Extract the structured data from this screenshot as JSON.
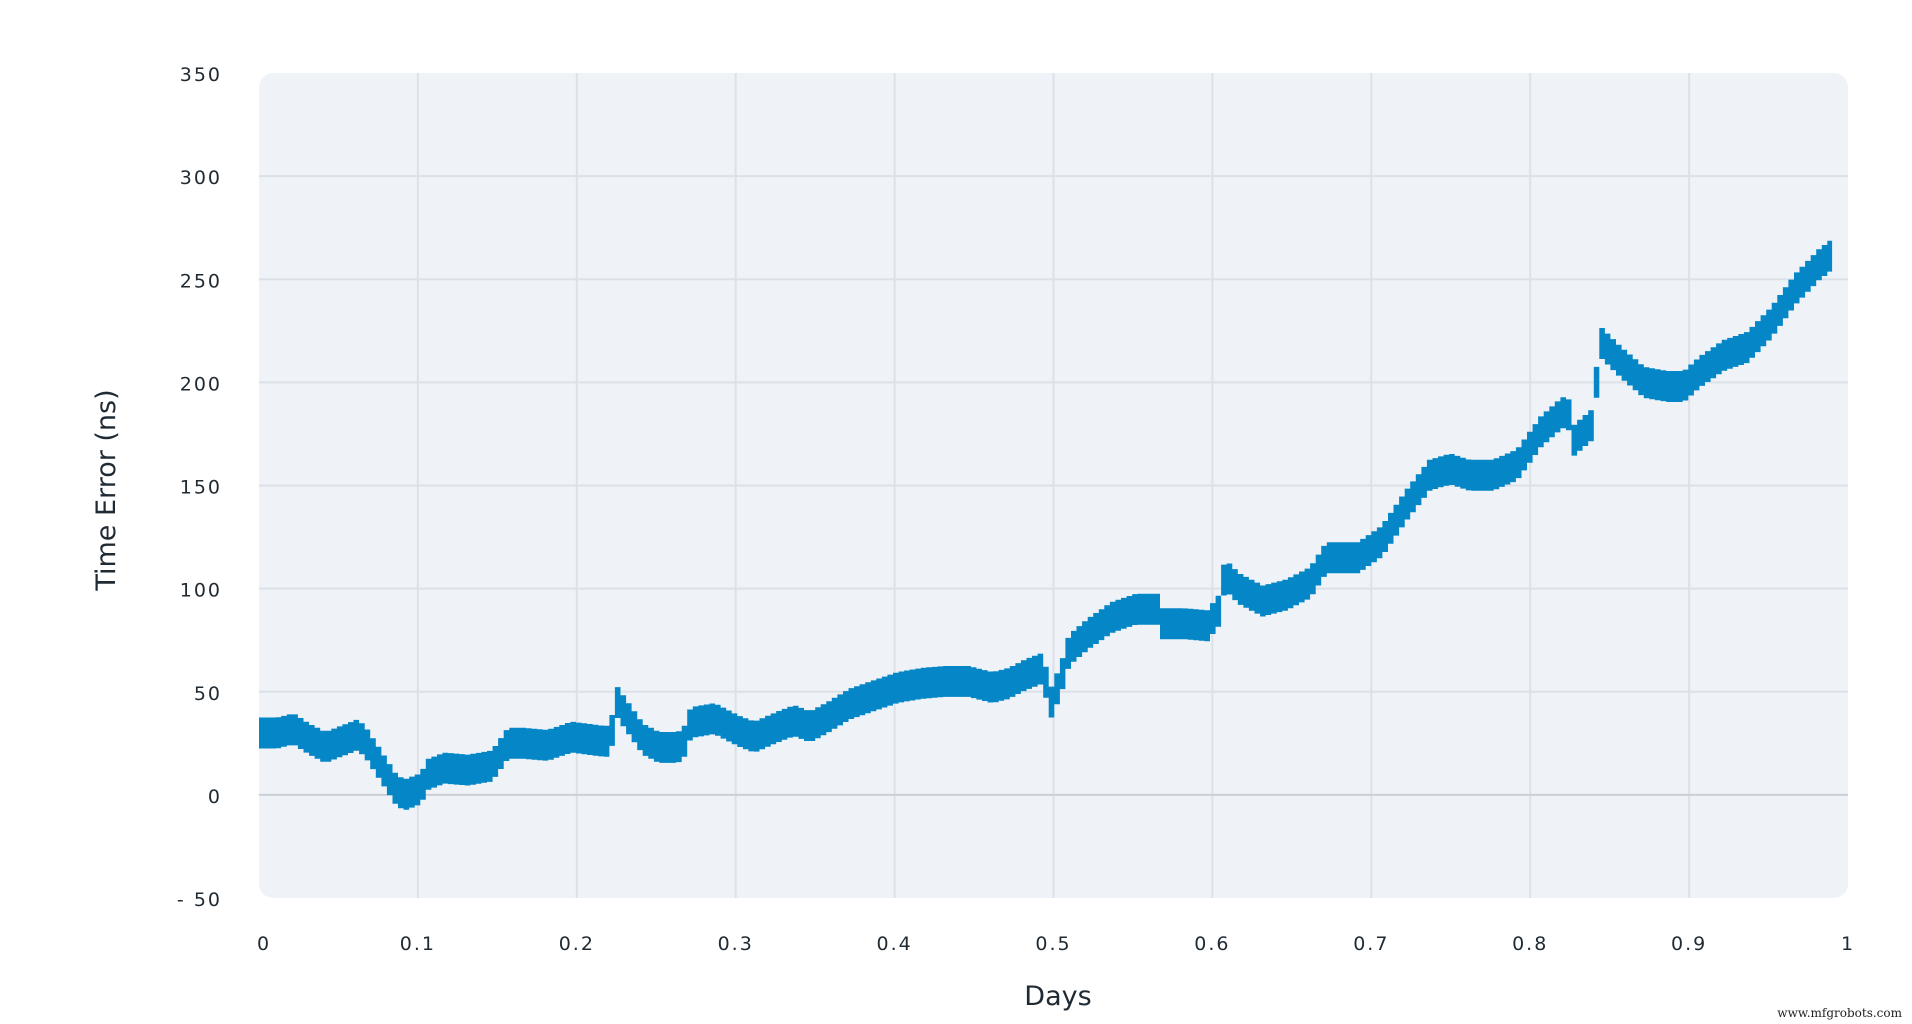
{
  "chart_data": {
    "type": "area",
    "title": "",
    "xlabel": "Days",
    "ylabel": "Time Error (ns)",
    "xlim": [
      0,
      1
    ],
    "ylim": [
      -50,
      350
    ],
    "grid": true,
    "legend": null,
    "x_ticks": [
      "0",
      "0.1",
      "0.2",
      "0.3",
      "0.4",
      "0.5",
      "0.6",
      "0.7",
      "0.8",
      "0.9",
      "1"
    ],
    "y_ticks": [
      "350",
      "300",
      "250",
      "200",
      "150",
      "100",
      "50",
      "0",
      "- 50"
    ],
    "band_half_width_ns": 7.5,
    "series": [
      {
        "name": "Time Error",
        "color": "#0586C6",
        "x": [
          0.0,
          0.01,
          0.02,
          0.03,
          0.04,
          0.05,
          0.06,
          0.065,
          0.075,
          0.085,
          0.09,
          0.1,
          0.105,
          0.115,
          0.13,
          0.145,
          0.155,
          0.165,
          0.18,
          0.195,
          0.205,
          0.215,
          0.22,
          0.222,
          0.23,
          0.24,
          0.25,
          0.262,
          0.266,
          0.27,
          0.285,
          0.3,
          0.31,
          0.325,
          0.335,
          0.345,
          0.355,
          0.37,
          0.385,
          0.4,
          0.415,
          0.43,
          0.445,
          0.46,
          0.47,
          0.48,
          0.49,
          0.493,
          0.497,
          0.503,
          0.508,
          0.52,
          0.535,
          0.55,
          0.565,
          0.567,
          0.58,
          0.595,
          0.603,
          0.606,
          0.615,
          0.63,
          0.645,
          0.66,
          0.67,
          0.69,
          0.705,
          0.72,
          0.735,
          0.748,
          0.76,
          0.775,
          0.79,
          0.805,
          0.818,
          0.822,
          0.826,
          0.835,
          0.838,
          0.842,
          0.855,
          0.87,
          0.885,
          0.895,
          0.905,
          0.92,
          0.935,
          0.95,
          0.965,
          0.98,
          0.99
        ],
        "y": [
          30,
          30,
          32,
          27,
          23,
          26,
          29,
          26,
          14,
          2,
          0,
          3,
          10,
          13,
          12,
          14,
          25,
          25,
          24,
          28,
          27,
          26,
          26,
          47,
          38,
          27,
          23,
          23,
          26,
          35,
          37,
          31,
          28,
          33,
          36,
          33,
          37,
          44,
          48,
          52,
          54,
          55,
          55,
          52,
          54,
          58,
          61,
          56,
          45,
          56,
          70,
          78,
          86,
          90,
          90,
          83,
          83,
          82,
          90,
          107,
          100,
          94,
          97,
          103,
          115,
          115,
          123,
          140,
          155,
          158,
          155,
          155,
          160,
          176,
          185,
          186,
          172,
          178,
          180,
          220,
          210,
          200,
          198,
          198,
          205,
          213,
          217,
          229,
          245,
          257,
          263
        ]
      }
    ],
    "colors": {
      "plot_background": "#EFF3F8",
      "gridline": "#DCE1E8",
      "zero_line": "#C9D0D8",
      "line": "#0586C6",
      "text": "#1F2A33"
    }
  },
  "watermark": "www.mfgrobots.com"
}
